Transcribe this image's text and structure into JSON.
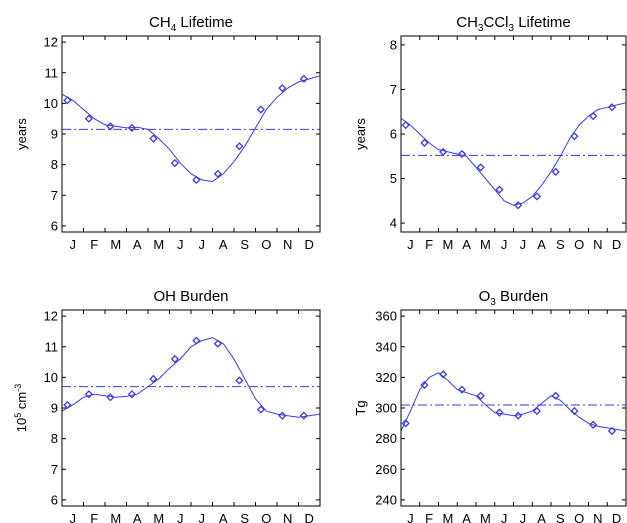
{
  "style": {
    "series_color": "#3a3ae0",
    "mean_color": "#3a3ae0",
    "axis_color": "#000000",
    "marker": "diamond-open"
  },
  "chart_data": [
    {
      "id": "ch4-lifetime",
      "type": "line",
      "title": "CH4 Lifetime",
      "title_parts": {
        "pre": "CH",
        "sub1": "4",
        "mid": "",
        "sub2": "",
        "post": " Lifetime"
      },
      "xlabel": "",
      "ylabel": "years",
      "ylabel_parts": {
        "pre": "years",
        "sup": "",
        "post": ""
      },
      "xlim": [
        0,
        12
      ],
      "ylim": [
        5.8,
        12.2
      ],
      "yticks": [
        6,
        7,
        8,
        9,
        10,
        11,
        12
      ],
      "months": [
        "J",
        "F",
        "M",
        "A",
        "M",
        "J",
        "J",
        "A",
        "S",
        "O",
        "N",
        "D"
      ],
      "mean": 9.15,
      "x": [
        0.0,
        0.5,
        1.0,
        1.5,
        2.0,
        2.5,
        3.0,
        3.5,
        4.0,
        4.5,
        5.0,
        5.5,
        6.0,
        6.5,
        7.0,
        7.5,
        8.0,
        8.5,
        9.0,
        9.5,
        10.0,
        10.5,
        11.0,
        11.5,
        12.0
      ],
      "y": [
        10.3,
        10.1,
        9.8,
        9.5,
        9.3,
        9.25,
        9.2,
        9.22,
        9.15,
        8.85,
        8.5,
        8.05,
        7.7,
        7.5,
        7.45,
        7.7,
        8.1,
        8.6,
        9.2,
        9.8,
        10.2,
        10.5,
        10.7,
        10.8,
        10.9
      ],
      "markers_x": [
        0.25,
        1.25,
        2.25,
        3.25,
        4.25,
        5.25,
        6.25,
        7.25,
        8.25,
        9.25,
        10.25,
        11.25
      ],
      "markers_y": [
        10.1,
        9.5,
        9.25,
        9.2,
        8.85,
        8.05,
        7.5,
        7.7,
        8.6,
        9.8,
        10.5,
        10.8
      ]
    },
    {
      "id": "ch3ccl3-lifetime",
      "type": "line",
      "title": "CH3CCl3 Lifetime",
      "title_parts": {
        "pre": "CH",
        "sub1": "3",
        "mid": "CCl",
        "sub2": "3",
        "post": " Lifetime"
      },
      "xlabel": "",
      "ylabel": "years",
      "ylabel_parts": {
        "pre": "years",
        "sup": "",
        "post": ""
      },
      "xlim": [
        0,
        12
      ],
      "ylim": [
        3.8,
        8.2
      ],
      "yticks": [
        4,
        5,
        6,
        7,
        8
      ],
      "months": [
        "J",
        "F",
        "M",
        "A",
        "M",
        "J",
        "J",
        "A",
        "S",
        "O",
        "N",
        "D"
      ],
      "mean": 5.52,
      "x": [
        0.0,
        0.5,
        1.0,
        1.5,
        2.0,
        2.5,
        3.0,
        3.5,
        4.0,
        4.5,
        5.0,
        5.5,
        6.0,
        6.5,
        7.0,
        7.5,
        8.0,
        8.5,
        9.0,
        9.5,
        10.0,
        10.5,
        11.0,
        11.5,
        12.0
      ],
      "y": [
        6.35,
        6.2,
        6.0,
        5.8,
        5.65,
        5.6,
        5.55,
        5.5,
        5.25,
        5.0,
        4.75,
        4.5,
        4.4,
        4.45,
        4.6,
        4.85,
        5.15,
        5.5,
        5.9,
        6.2,
        6.4,
        6.55,
        6.6,
        6.65,
        6.7
      ],
      "markers_x": [
        0.25,
        1.25,
        2.25,
        3.25,
        4.25,
        5.25,
        6.25,
        7.25,
        8.25,
        9.25,
        10.25,
        11.25
      ],
      "markers_y": [
        6.2,
        5.8,
        5.6,
        5.55,
        5.25,
        4.75,
        4.4,
        4.6,
        5.15,
        5.95,
        6.4,
        6.6
      ]
    },
    {
      "id": "oh-burden",
      "type": "line",
      "title": "OH Burden",
      "title_parts": {
        "pre": "OH Burden",
        "sub1": "",
        "mid": "",
        "sub2": "",
        "post": ""
      },
      "xlabel": "",
      "ylabel": "10^5 cm^-3",
      "ylabel_parts": {
        "pre": "10",
        "sup": "5",
        "post": " cm",
        "sup2": "-3"
      },
      "xlim": [
        0,
        12
      ],
      "ylim": [
        5.8,
        12.2
      ],
      "yticks": [
        6,
        7,
        8,
        9,
        10,
        11,
        12
      ],
      "months": [
        "J",
        "F",
        "M",
        "A",
        "M",
        "J",
        "J",
        "A",
        "S",
        "O",
        "N",
        "D"
      ],
      "mean": 9.7,
      "x": [
        0.0,
        0.5,
        1.0,
        1.5,
        2.0,
        2.5,
        3.0,
        3.5,
        4.0,
        4.5,
        5.0,
        5.5,
        6.0,
        6.5,
        7.0,
        7.5,
        8.0,
        8.5,
        9.0,
        9.5,
        10.0,
        10.5,
        11.0,
        11.5,
        12.0
      ],
      "y": [
        8.9,
        9.1,
        9.35,
        9.45,
        9.4,
        9.35,
        9.38,
        9.45,
        9.7,
        9.95,
        10.3,
        10.6,
        11.0,
        11.2,
        11.3,
        11.1,
        10.6,
        9.95,
        9.3,
        8.9,
        8.8,
        8.75,
        8.7,
        8.75,
        8.8
      ],
      "markers_x": [
        0.25,
        1.25,
        2.25,
        3.25,
        4.25,
        5.25,
        6.25,
        7.25,
        8.25,
        9.25,
        10.25,
        11.25
      ],
      "markers_y": [
        9.1,
        9.45,
        9.35,
        9.45,
        9.95,
        10.6,
        11.2,
        11.1,
        9.9,
        8.95,
        8.75,
        8.75
      ]
    },
    {
      "id": "o3-burden",
      "type": "line",
      "title": "O3 Burden",
      "title_parts": {
        "pre": "O",
        "sub1": "3",
        "mid": "",
        "sub2": "",
        "post": " Burden"
      },
      "xlabel": "",
      "ylabel": "Tg",
      "ylabel_parts": {
        "pre": "Tg",
        "sup": "",
        "post": ""
      },
      "xlim": [
        0,
        12
      ],
      "ylim": [
        236,
        364
      ],
      "yticks": [
        240,
        260,
        280,
        300,
        320,
        340,
        360
      ],
      "months": [
        "J",
        "F",
        "M",
        "A",
        "M",
        "J",
        "J",
        "A",
        "S",
        "O",
        "N",
        "D"
      ],
      "mean": 302,
      "x": [
        0.0,
        0.5,
        1.0,
        1.5,
        2.0,
        2.5,
        3.0,
        3.5,
        4.0,
        4.5,
        5.0,
        5.5,
        6.0,
        6.5,
        7.0,
        7.5,
        8.0,
        8.5,
        9.0,
        9.5,
        10.0,
        10.5,
        11.0,
        11.5,
        12.0
      ],
      "y": [
        285,
        298,
        312,
        320,
        323,
        318,
        312,
        310,
        308,
        302,
        297,
        296,
        295,
        296,
        298,
        303,
        308,
        305,
        299,
        294,
        290,
        288,
        287,
        286,
        285
      ],
      "markers_x": [
        0.25,
        1.25,
        2.25,
        3.25,
        4.25,
        5.25,
        6.25,
        7.25,
        8.25,
        9.25,
        10.25,
        11.25
      ],
      "markers_y": [
        290,
        315,
        322,
        312,
        308,
        297,
        295,
        298,
        308,
        298,
        289,
        285
      ]
    }
  ]
}
